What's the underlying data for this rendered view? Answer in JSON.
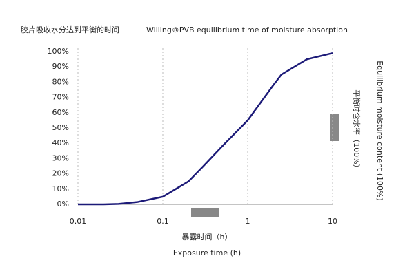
{
  "chart_data": {
    "type": "line",
    "title": "胶片吸收水分达到平衡的时间",
    "subtitle": "Willing®PVB equilibrium time of moisture absorption",
    "xlabel": [
      "暴露时间（h）",
      "Exposure time (h)"
    ],
    "ylabel": [
      "平衡时含水率（100%）",
      "Equilibrium moisture content (100%)"
    ],
    "xscale": "log",
    "grid": true,
    "x": [
      0.01,
      0.02,
      0.03,
      0.05,
      0.1,
      0.2,
      0.3,
      0.5,
      1,
      2,
      2.5,
      5,
      10
    ],
    "series": [
      {
        "name": "Willing®PVB",
        "color": "#1c1a78",
        "values": [
          0,
          0,
          0.3,
          1.5,
          5,
          15,
          25,
          38,
          55,
          78,
          85,
          95,
          99
        ]
      }
    ],
    "xlim": [
      0.01,
      10
    ],
    "xticks": [
      0.01,
      0.1,
      1,
      10
    ],
    "ylim": [
      0,
      100
    ],
    "yticks": [
      {
        "value": 0,
        "label": "0%"
      },
      {
        "value": 10,
        "label": "10%"
      },
      {
        "value": 20,
        "label": "20%"
      },
      {
        "value": 30,
        "label": "30%"
      },
      {
        "value": 40,
        "label": "40%"
      },
      {
        "value": 50,
        "label": "50%"
      },
      {
        "value": 60,
        "label": "60%"
      },
      {
        "value": 70,
        "label": "70%"
      },
      {
        "value": 80,
        "label": "80%"
      },
      {
        "value": 90,
        "label": "90%"
      },
      {
        "value": 100,
        "label": "100%"
      }
    ]
  }
}
